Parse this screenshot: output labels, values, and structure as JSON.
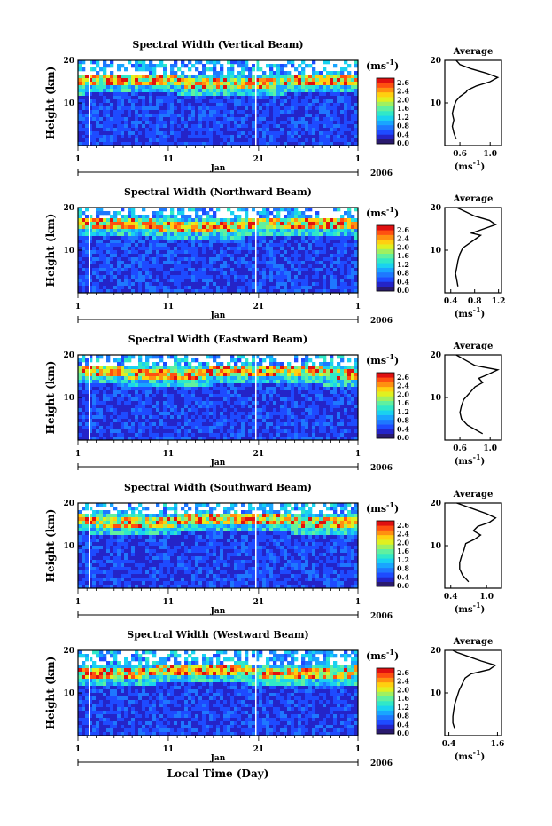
{
  "figure": {
    "xlabel": "Local Time (Day)",
    "year": "2006",
    "month": "Jan",
    "colorbar_unit": "(ms",
    "colorbar_exp": "-1",
    "avg_unit": "(ms",
    "avg_unit_exp": "-1"
  },
  "chart_data": [
    {
      "type": "heatmap",
      "title": "Spectral Width (Vertical Beam)",
      "ylabel": "Height (km)",
      "y_ticks": [
        "20",
        "10"
      ],
      "x_ticks": [
        "1",
        "11",
        "21",
        "1"
      ],
      "x_label": "Jan",
      "colorbar_ticks": [
        "2.6",
        "2.4",
        "2.0",
        "1.6",
        "1.2",
        "0.8",
        "0.4",
        "0.0"
      ],
      "colorbar_unit": "(ms-1)",
      "year": "2006",
      "peak_height_km": 15,
      "average": {
        "title": "Average",
        "x_ticks": [
          "0.6",
          "1.0"
        ],
        "xlim": [
          0.4,
          1.15
        ],
        "xlabel": "(ms-1)",
        "profile": [
          [
            0.55,
            1.5
          ],
          [
            0.52,
            3
          ],
          [
            0.5,
            4.5
          ],
          [
            0.52,
            6
          ],
          [
            0.5,
            7.5
          ],
          [
            0.52,
            9
          ],
          [
            0.55,
            10.5
          ],
          [
            0.6,
            11.5
          ],
          [
            0.68,
            12.5
          ],
          [
            0.7,
            13
          ],
          [
            0.82,
            14
          ],
          [
            1.0,
            15
          ],
          [
            1.1,
            16
          ],
          [
            0.95,
            17
          ],
          [
            0.75,
            18
          ],
          [
            0.6,
            19
          ],
          [
            0.55,
            20
          ]
        ]
      }
    },
    {
      "type": "heatmap",
      "title": "Spectral Width (Northward Beam)",
      "ylabel": "Height (km)",
      "y_ticks": [
        "20",
        "10"
      ],
      "x_ticks": [
        "1",
        "11",
        "21",
        "1"
      ],
      "x_label": "Jan",
      "colorbar_ticks": [
        "2.6",
        "2.4",
        "2.0",
        "1.6",
        "1.2",
        "0.8",
        "0.4",
        "0.0"
      ],
      "colorbar_unit": "(ms-1)",
      "year": "2006",
      "peak_height_km": 16,
      "average": {
        "title": "Average",
        "x_ticks": [
          "0.4",
          "0.8",
          "1.2"
        ],
        "xlim": [
          0.3,
          1.25
        ],
        "xlabel": "(ms-1)",
        "profile": [
          [
            0.52,
            1.5
          ],
          [
            0.5,
            3
          ],
          [
            0.48,
            4.5
          ],
          [
            0.5,
            6
          ],
          [
            0.52,
            7.5
          ],
          [
            0.55,
            9
          ],
          [
            0.6,
            10.5
          ],
          [
            0.7,
            11.5
          ],
          [
            0.8,
            12.5
          ],
          [
            0.9,
            13.5
          ],
          [
            0.75,
            14
          ],
          [
            0.95,
            15
          ],
          [
            1.15,
            16
          ],
          [
            1.05,
            17
          ],
          [
            0.8,
            18
          ],
          [
            0.65,
            19
          ],
          [
            0.5,
            20
          ]
        ]
      }
    },
    {
      "type": "heatmap",
      "title": "Spectral Width (Eastward Beam)",
      "ylabel": "Height (km)",
      "y_ticks": [
        "20",
        "10"
      ],
      "x_ticks": [
        "1",
        "11",
        "21",
        "1"
      ],
      "x_label": "Jan",
      "colorbar_ticks": [
        "2.6",
        "2.4",
        "2.0",
        "1.6",
        "1.2",
        "0.8",
        "0.4",
        "0.0"
      ],
      "colorbar_unit": "(ms-1)",
      "year": "2006",
      "peak_height_km": 16,
      "average": {
        "title": "Average",
        "x_ticks": [
          "0.6",
          "1.0"
        ],
        "xlim": [
          0.4,
          1.15
        ],
        "xlabel": "(ms-1)",
        "profile": [
          [
            0.9,
            1.5
          ],
          [
            0.8,
            2.5
          ],
          [
            0.7,
            3.5
          ],
          [
            0.62,
            5
          ],
          [
            0.6,
            6.5
          ],
          [
            0.62,
            8
          ],
          [
            0.65,
            9.5
          ],
          [
            0.7,
            10.5
          ],
          [
            0.75,
            11.5
          ],
          [
            0.8,
            12.5
          ],
          [
            0.9,
            13.5
          ],
          [
            0.85,
            14.5
          ],
          [
            0.98,
            15.5
          ],
          [
            1.1,
            16.5
          ],
          [
            0.8,
            17.5
          ],
          [
            0.65,
            19
          ],
          [
            0.55,
            20
          ]
        ]
      }
    },
    {
      "type": "heatmap",
      "title": "Spectral Width (Southward Beam)",
      "ylabel": "Height (km)",
      "y_ticks": [
        "20",
        "10"
      ],
      "x_ticks": [
        "1",
        "11",
        "21",
        "1"
      ],
      "x_label": "Jan",
      "colorbar_ticks": [
        "2.6",
        "2.4",
        "2.0",
        "1.6",
        "1.2",
        "0.8",
        "0.4",
        "0.0"
      ],
      "colorbar_unit": "(ms-1)",
      "year": "2006",
      "peak_height_km": 16,
      "average": {
        "title": "Average",
        "x_ticks": [
          "0.4",
          "1.0"
        ],
        "xlim": [
          0.3,
          1.25
        ],
        "xlabel": "(ms-1)",
        "profile": [
          [
            0.7,
            1.5
          ],
          [
            0.6,
            3
          ],
          [
            0.55,
            4.5
          ],
          [
            0.55,
            6
          ],
          [
            0.58,
            7.5
          ],
          [
            0.62,
            9
          ],
          [
            0.65,
            10.5
          ],
          [
            0.8,
            11.5
          ],
          [
            0.9,
            12.5
          ],
          [
            0.78,
            13.5
          ],
          [
            0.85,
            14.5
          ],
          [
            1.05,
            15.5
          ],
          [
            1.15,
            16.5
          ],
          [
            1.0,
            17.5
          ],
          [
            0.8,
            18.5
          ],
          [
            0.6,
            19.5
          ],
          [
            0.5,
            20
          ]
        ]
      }
    },
    {
      "type": "heatmap",
      "title": "Spectral Width (Westward Beam)",
      "ylabel": "Height (km)",
      "y_ticks": [
        "20",
        "10"
      ],
      "x_ticks": [
        "1",
        "11",
        "21",
        "1"
      ],
      "x_label": "Jan",
      "colorbar_ticks": [
        "2.6",
        "2.4",
        "2.0",
        "1.6",
        "1.2",
        "0.8",
        "0.4",
        "0.0"
      ],
      "colorbar_unit": "(ms-1)",
      "year": "2006",
      "peak_height_km": 15,
      "average": {
        "title": "Average",
        "x_ticks": [
          "0.4",
          "1.6"
        ],
        "xlim": [
          0.3,
          1.7
        ],
        "xlabel": "(ms-1)",
        "profile": [
          [
            0.55,
            1.5
          ],
          [
            0.5,
            3
          ],
          [
            0.5,
            4.5
          ],
          [
            0.52,
            6
          ],
          [
            0.55,
            7.5
          ],
          [
            0.6,
            9
          ],
          [
            0.65,
            10.5
          ],
          [
            0.7,
            11.5
          ],
          [
            0.75,
            12.5
          ],
          [
            0.8,
            13.5
          ],
          [
            0.95,
            14.5
          ],
          [
            1.4,
            15.5
          ],
          [
            1.55,
            16.5
          ],
          [
            1.2,
            17.5
          ],
          [
            0.9,
            18.5
          ],
          [
            0.6,
            19.5
          ],
          [
            0.5,
            20
          ]
        ]
      }
    }
  ]
}
